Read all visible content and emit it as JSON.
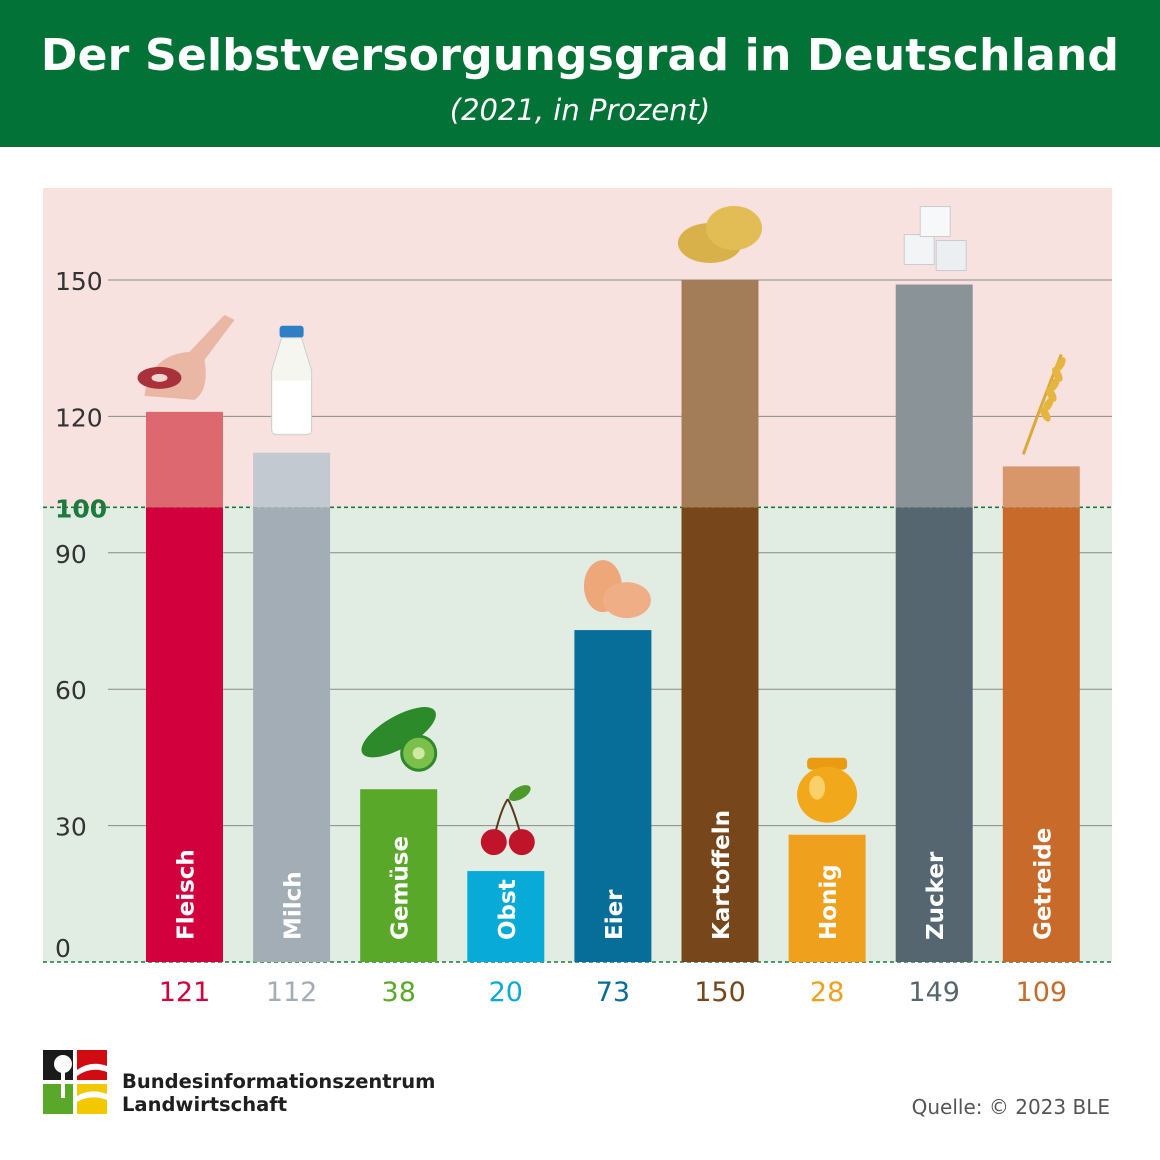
{
  "header": {
    "title": "Der Selbstversorgungsgrad in Deutschland",
    "subtitle": "(2021, in Prozent)"
  },
  "chart_data": {
    "type": "bar",
    "title": "Der Selbstversorgungsgrad in Deutschland",
    "subtitle": "(2021, in Prozent)",
    "categories": [
      "Fleisch",
      "Milch",
      "Gemüse",
      "Obst",
      "Eier",
      "Kartoffeln",
      "Honig",
      "Zucker",
      "Getreide"
    ],
    "values": [
      121,
      112,
      38,
      20,
      73,
      150,
      28,
      149,
      109
    ],
    "value_labels": [
      "121",
      "112",
      "38",
      "20",
      "73",
      "150",
      "28",
      "149",
      "109"
    ],
    "ylim": [
      0,
      160
    ],
    "yticks": [
      0,
      30,
      60,
      90,
      100,
      120,
      150
    ],
    "ytick_labels": [
      "0",
      "30",
      "60",
      "90",
      "100",
      "120",
      "150"
    ],
    "reference_line": 100,
    "grid": true,
    "colors": {
      "below_100": [
        "#d2003c",
        "#a2adb5",
        "#5aa829",
        "#08aad7",
        "#066e99",
        "#77461a",
        "#efa01d",
        "#566670",
        "#c86a2a"
      ],
      "above_100": [
        "#de6870",
        "#c2c9d0",
        "#5aa829",
        "#08aad7",
        "#066e99",
        "#a37d57",
        "#efa01d",
        "#8a9398",
        "#d8976a"
      ],
      "value_label": [
        "#d2003c",
        "#a2adb5",
        "#5aa829",
        "#08aad7",
        "#066e99",
        "#77461a",
        "#efa01d",
        "#566670",
        "#c86a2a"
      ],
      "upper_band": "#f8e2df",
      "lower_band": "#e1ede3",
      "reference_line": "#1c7a3d",
      "header": "#037237"
    },
    "icons": [
      "ham-icon",
      "milk-bottle-icon",
      "cucumber-icon",
      "cherry-icon",
      "eggs-icon",
      "potatoes-icon",
      "honey-jar-icon",
      "sugar-cubes-icon",
      "wheat-icon"
    ]
  },
  "footer": {
    "org_line1": "Bundesinformationszentrum",
    "org_line2": "Landwirtschaft",
    "source": "Quelle: © 2023 BLE"
  }
}
